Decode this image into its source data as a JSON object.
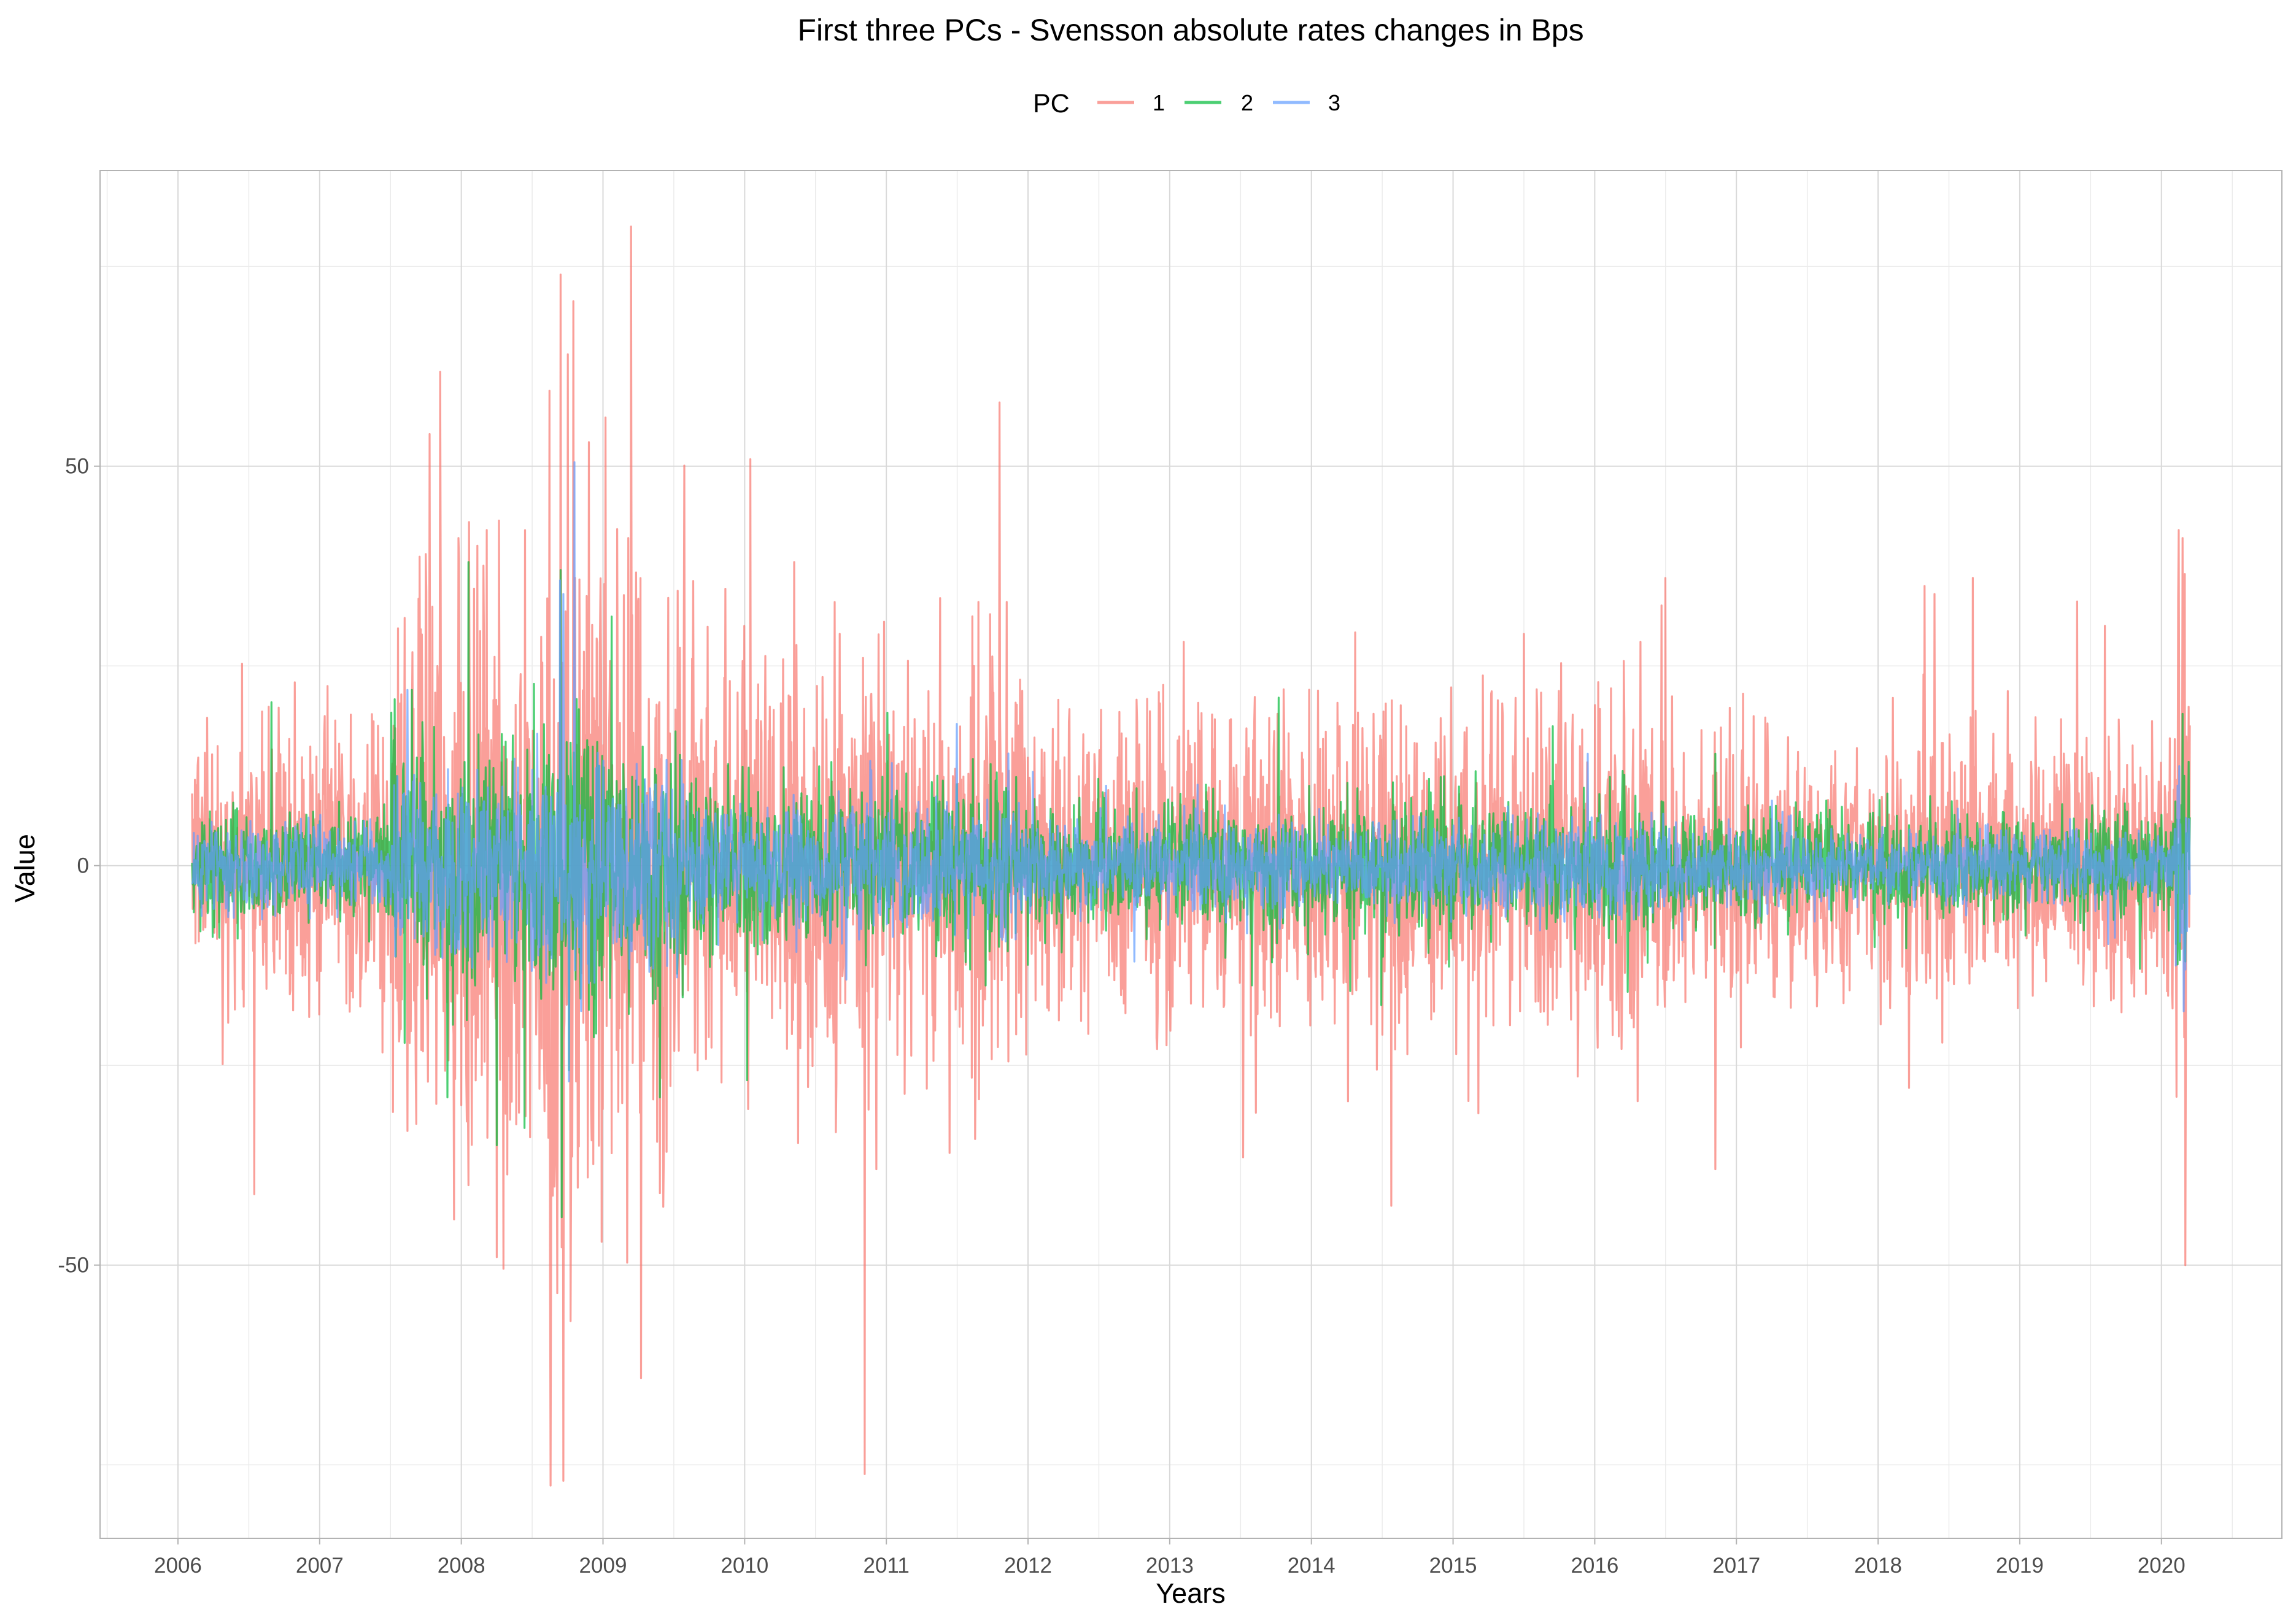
{
  "chart_data": {
    "type": "line",
    "title": "First three PCs - Svensson absolute rates changes in Bps",
    "xlabel": "Years",
    "ylabel": "Value",
    "x_range": [
      2005.45,
      2020.85
    ],
    "ylim": [
      -84.2,
      87.0
    ],
    "x_ticks": [
      2006,
      2007,
      2008,
      2009,
      2010,
      2011,
      2012,
      2013,
      2014,
      2015,
      2016,
      2017,
      2018,
      2019,
      2020
    ],
    "x_tick_labels": [
      "2006",
      "2007",
      "2008",
      "2009",
      "2010",
      "2011",
      "2012",
      "2013",
      "2014",
      "2015",
      "2016",
      "2017",
      "2018",
      "2019",
      "2020"
    ],
    "y_ticks": [
      -50,
      0,
      50
    ],
    "y_tick_labels": [
      "-50",
      "0",
      "50"
    ],
    "grid": true,
    "legend": {
      "title": "PC",
      "position": "top"
    },
    "x_start": 2006.1,
    "x_end": 2020.2,
    "series": [
      {
        "name": "1",
        "color": "#F8766D",
        "typical_amplitude": 9,
        "extremes": [
          {
            "x": 2007.6,
            "y": 31
          },
          {
            "x": 2007.75,
            "y": 39
          },
          {
            "x": 2007.98,
            "y": 41
          },
          {
            "x": 2008.05,
            "y": -40
          },
          {
            "x": 2008.05,
            "y": 43
          },
          {
            "x": 2008.18,
            "y": 42
          },
          {
            "x": 2008.25,
            "y": -49
          },
          {
            "x": 2008.7,
            "y": 74
          },
          {
            "x": 2008.72,
            "y": -77
          },
          {
            "x": 2008.75,
            "y": 64
          },
          {
            "x": 2008.77,
            "y": -57
          },
          {
            "x": 2008.9,
            "y": 53
          },
          {
            "x": 2009.06,
            "y": -36
          },
          {
            "x": 2009.18,
            "y": 41
          },
          {
            "x": 2009.2,
            "y": 80
          },
          {
            "x": 2009.4,
            "y": -41
          },
          {
            "x": 2010.35,
            "y": 38
          },
          {
            "x": 2010.93,
            "y": -38
          },
          {
            "x": 2011.65,
            "y": 33
          },
          {
            "x": 2011.85,
            "y": 33
          },
          {
            "x": 2013.1,
            "y": 28
          },
          {
            "x": 2013.52,
            "y": -36.5
          },
          {
            "x": 2015.5,
            "y": 29
          },
          {
            "x": 2016.5,
            "y": 36
          },
          {
            "x": 2016.85,
            "y": -38
          },
          {
            "x": 2018.4,
            "y": 34
          },
          {
            "x": 2019.6,
            "y": 30
          },
          {
            "x": 2020.12,
            "y": 42
          },
          {
            "x": 2020.15,
            "y": 41
          },
          {
            "x": 2020.17,
            "y": -50
          }
        ]
      },
      {
        "name": "2",
        "color": "#00BA38",
        "typical_amplitude": 3.5,
        "extremes": [
          {
            "x": 2007.65,
            "y": 22
          },
          {
            "x": 2007.9,
            "y": -29
          },
          {
            "x": 2008.05,
            "y": 38
          },
          {
            "x": 2008.25,
            "y": -35
          },
          {
            "x": 2008.7,
            "y": 37
          },
          {
            "x": 2008.71,
            "y": -44
          },
          {
            "x": 2008.95,
            "y": -21
          },
          {
            "x": 2009.4,
            "y": -29
          },
          {
            "x": 2011.7,
            "y": -15
          },
          {
            "x": 2016.85,
            "y": 14
          },
          {
            "x": 2020.15,
            "y": 19
          },
          {
            "x": 2020.17,
            "y": -12
          }
        ]
      },
      {
        "name": "3",
        "color": "#619CFF",
        "typical_amplitude": 2.5,
        "extremes": [
          {
            "x": 2007.62,
            "y": 22
          },
          {
            "x": 2008.72,
            "y": 34
          },
          {
            "x": 2008.8,
            "y": 50.5
          },
          {
            "x": 2008.76,
            "y": -27
          },
          {
            "x": 2012.55,
            "y": 10
          },
          {
            "x": 2012.75,
            "y": -12
          },
          {
            "x": 2015.95,
            "y": 14
          },
          {
            "x": 2020.17,
            "y": -13
          }
        ]
      }
    ]
  }
}
